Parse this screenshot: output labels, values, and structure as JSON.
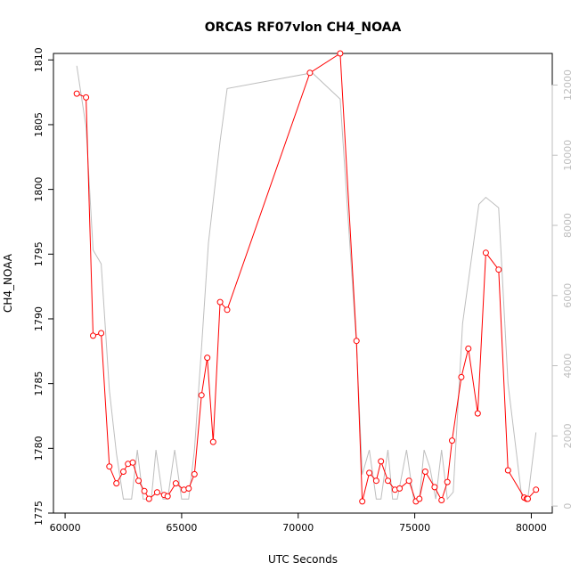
{
  "chart_data": {
    "type": "line",
    "title": "ORCAS RF07vlon CH4_NOAA",
    "xlabel": "UTC Seconds",
    "ylabel": "CH4_NOAA",
    "xlim": [
      59500,
      80900
    ],
    "ylim": [
      1775,
      1810.5
    ],
    "y2lim": [
      -200,
      12900
    ],
    "xticks": [
      60000,
      65000,
      70000,
      75000,
      80000
    ],
    "yticks": [
      1775,
      1780,
      1785,
      1790,
      1795,
      1800,
      1805,
      1810
    ],
    "y2ticks": [
      0,
      2000,
      4000,
      6000,
      8000,
      10000,
      12000
    ],
    "grid": false,
    "series": [
      {
        "axis": "left",
        "color": "#ff0000",
        "style": "line+points",
        "points": [
          [
            60500,
            1807.4
          ],
          [
            60900,
            1807.1
          ],
          [
            61200,
            1788.7
          ],
          [
            61550,
            1788.9
          ],
          [
            61900,
            1778.6
          ],
          [
            62200,
            1777.3
          ],
          [
            62500,
            1778.2
          ],
          [
            62700,
            1778.8
          ],
          [
            62900,
            1778.9
          ],
          [
            63150,
            1777.5
          ],
          [
            63400,
            1776.7
          ],
          [
            63600,
            1776.1
          ],
          [
            63950,
            1776.6
          ],
          [
            64250,
            1776.4
          ],
          [
            64400,
            1776.3
          ],
          [
            64750,
            1777.3
          ],
          [
            65100,
            1776.8
          ],
          [
            65300,
            1776.9
          ],
          [
            65550,
            1778.0
          ],
          [
            65850,
            1784.1
          ],
          [
            66100,
            1787.0
          ],
          [
            66350,
            1780.5
          ],
          [
            66650,
            1791.3
          ],
          [
            66950,
            1790.7
          ],
          [
            70500,
            1809.0
          ],
          [
            71800,
            1810.5
          ],
          [
            72500,
            1788.3
          ],
          [
            72750,
            1775.9
          ],
          [
            73050,
            1778.1
          ],
          [
            73350,
            1777.5
          ],
          [
            73550,
            1779.0
          ],
          [
            73850,
            1777.5
          ],
          [
            74150,
            1776.8
          ],
          [
            74350,
            1776.9
          ],
          [
            74750,
            1777.5
          ],
          [
            75050,
            1775.9
          ],
          [
            75200,
            1776.1
          ],
          [
            75450,
            1778.2
          ],
          [
            75850,
            1777.0
          ],
          [
            76150,
            1776.0
          ],
          [
            76400,
            1777.4
          ],
          [
            76600,
            1780.6
          ],
          [
            77000,
            1785.5
          ],
          [
            77300,
            1787.7
          ],
          [
            77700,
            1782.7
          ],
          [
            78050,
            1795.1
          ],
          [
            78600,
            1793.8
          ],
          [
            79000,
            1778.3
          ],
          [
            79700,
            1776.2
          ],
          [
            79800,
            1776.1
          ],
          [
            79850,
            1776.1
          ],
          [
            80200,
            1776.8
          ]
        ]
      },
      {
        "axis": "right",
        "color": "#bebebe",
        "style": "line",
        "points": [
          [
            60500,
            12550
          ],
          [
            60900,
            10800
          ],
          [
            61200,
            7300
          ],
          [
            61550,
            6900
          ],
          [
            61900,
            3300
          ],
          [
            62200,
            1500
          ],
          [
            62500,
            200
          ],
          [
            62850,
            200
          ],
          [
            63100,
            1600
          ],
          [
            63350,
            200
          ],
          [
            63700,
            200
          ],
          [
            63900,
            1600
          ],
          [
            64200,
            200
          ],
          [
            64400,
            200
          ],
          [
            64700,
            1600
          ],
          [
            65000,
            200
          ],
          [
            65300,
            200
          ],
          [
            65550,
            1600
          ],
          [
            65850,
            4500
          ],
          [
            66150,
            7500
          ],
          [
            66650,
            10400
          ],
          [
            66950,
            11900
          ],
          [
            70600,
            12350
          ],
          [
            71800,
            11600
          ],
          [
            72500,
            4600
          ],
          [
            72750,
            900
          ],
          [
            73050,
            1600
          ],
          [
            73350,
            200
          ],
          [
            73550,
            200
          ],
          [
            73850,
            1600
          ],
          [
            74050,
            200
          ],
          [
            74250,
            200
          ],
          [
            74650,
            1600
          ],
          [
            74950,
            200
          ],
          [
            75200,
            200
          ],
          [
            75400,
            1600
          ],
          [
            75650,
            1100
          ],
          [
            75900,
            200
          ],
          [
            76150,
            1600
          ],
          [
            76400,
            200
          ],
          [
            76650,
            400
          ],
          [
            77050,
            5200
          ],
          [
            77750,
            8600
          ],
          [
            78050,
            8800
          ],
          [
            78600,
            8500
          ],
          [
            79000,
            3500
          ],
          [
            79600,
            200
          ],
          [
            79850,
            200
          ],
          [
            80200,
            2100
          ]
        ]
      }
    ]
  }
}
